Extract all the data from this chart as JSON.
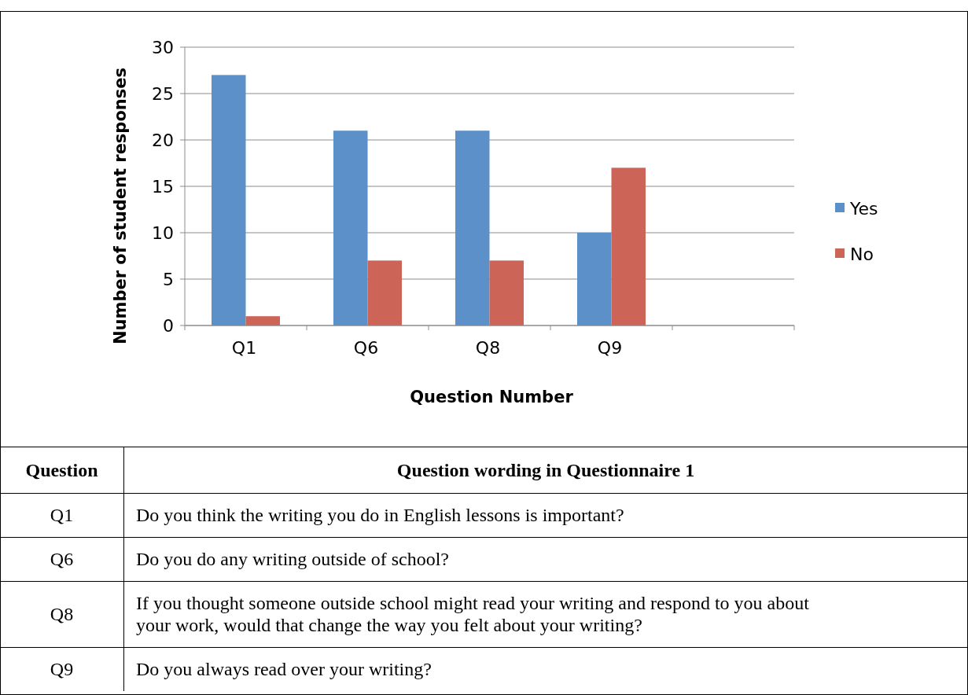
{
  "chart_data": {
    "type": "bar",
    "xlabel": "Question Number",
    "ylabel": "Number of student responses",
    "categories": [
      "Q1",
      "Q6",
      "Q8",
      "Q9",
      null
    ],
    "series": [
      {
        "name": "Yes",
        "color": "#5b90c8",
        "values": [
          27,
          21,
          21,
          10,
          null
        ]
      },
      {
        "name": "No",
        "color": "#cc6458",
        "values": [
          1,
          7,
          7,
          17,
          null
        ]
      }
    ],
    "ylim": [
      0,
      30
    ],
    "yticks": [
      0,
      5,
      10,
      15,
      20,
      25,
      30
    ],
    "grid": "y",
    "legend": "right",
    "annotations": [
      "Question",
      "Question wording in Questionnaire 1",
      "Q1",
      "Do you think the writing you do in English lessons is important?",
      "Q6",
      "Do you do any writing outside of school?",
      "Q8",
      "If you thought someone outside school might read your writing and respond to you about your work, would that change the way you felt about your writing?",
      "Q9",
      "Do you always read over your writing?"
    ]
  }
}
